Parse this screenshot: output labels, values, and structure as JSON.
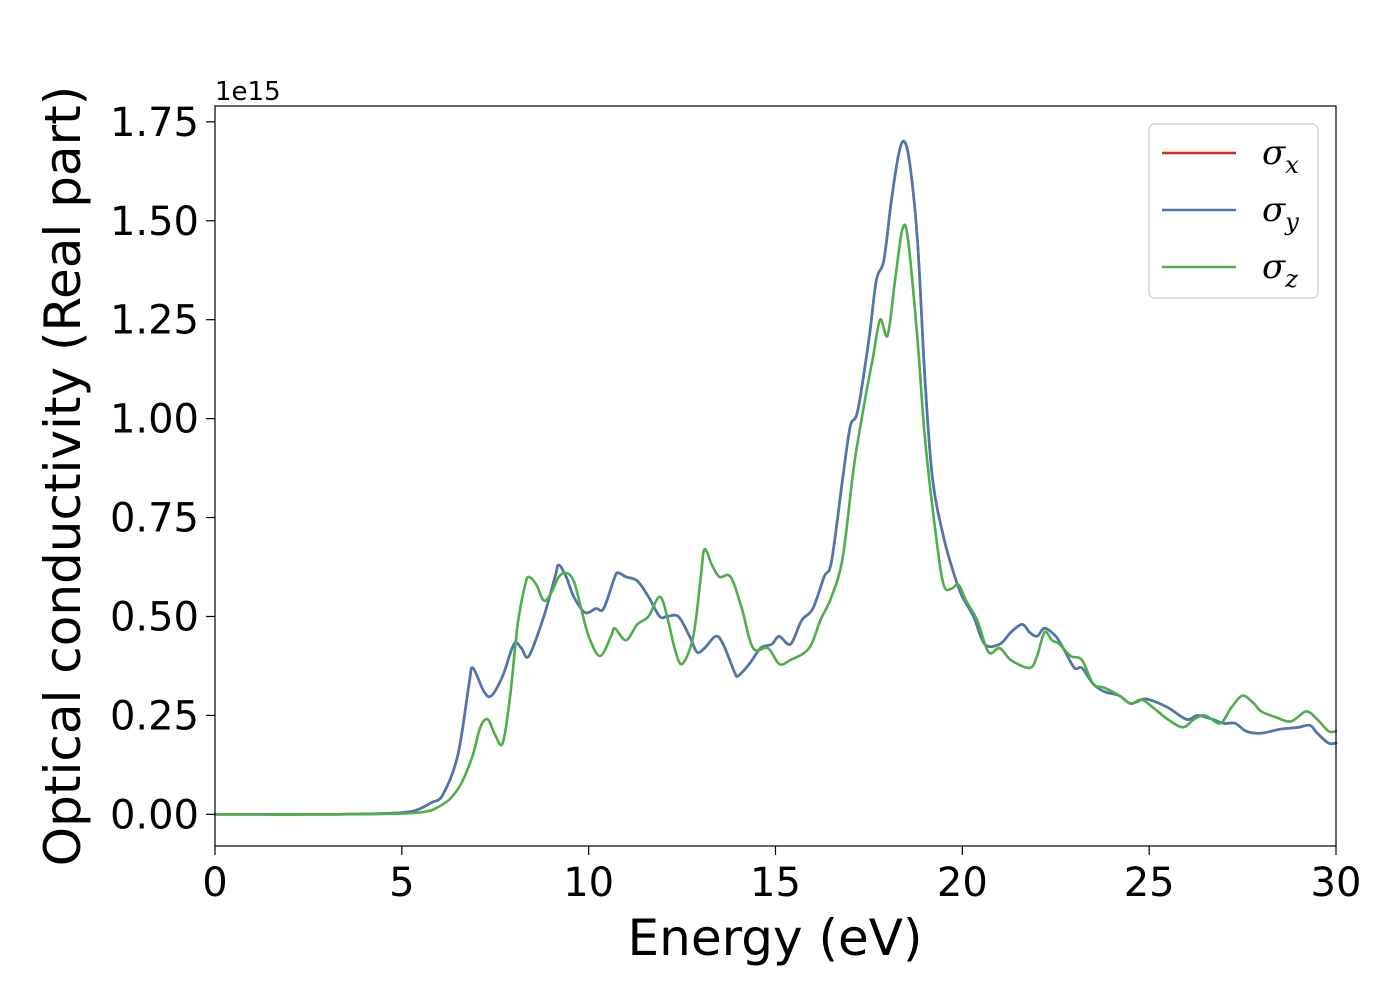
{
  "chart_data": {
    "type": "line",
    "xlabel": "Energy (eV)",
    "ylabel": "Optical conductivity (Real part)",
    "y_offset_text": "1e15",
    "xlim": [
      0,
      30
    ],
    "ylim": [
      -0.08,
      1.79
    ],
    "x_ticks": [
      "0",
      "5",
      "10",
      "15",
      "20",
      "25",
      "30"
    ],
    "y_ticks": [
      "0.00",
      "0.25",
      "0.50",
      "0.75",
      "1.00",
      "1.25",
      "1.50",
      "1.75"
    ],
    "legend_position": "top-right",
    "series": [
      {
        "name": "σ_x",
        "symbol": "σ",
        "subscript": "x",
        "color": "#d62728",
        "points": [
          [
            0,
            0
          ],
          [
            3,
            0
          ],
          [
            4.5,
            0.002
          ],
          [
            5.3,
            0.008
          ],
          [
            5.8,
            0.03
          ],
          [
            6.1,
            0.05
          ],
          [
            6.5,
            0.15
          ],
          [
            6.8,
            0.33
          ],
          [
            6.9,
            0.37
          ],
          [
            7.2,
            0.31
          ],
          [
            7.4,
            0.3
          ],
          [
            7.7,
            0.35
          ],
          [
            8.0,
            0.43
          ],
          [
            8.2,
            0.42
          ],
          [
            8.4,
            0.4
          ],
          [
            8.8,
            0.5
          ],
          [
            9.1,
            0.6
          ],
          [
            9.2,
            0.63
          ],
          [
            9.4,
            0.6
          ],
          [
            9.6,
            0.55
          ],
          [
            9.9,
            0.51
          ],
          [
            10.2,
            0.52
          ],
          [
            10.4,
            0.52
          ],
          [
            10.7,
            0.6
          ],
          [
            10.8,
            0.61
          ],
          [
            11.0,
            0.6
          ],
          [
            11.3,
            0.59
          ],
          [
            11.6,
            0.55
          ],
          [
            11.9,
            0.5
          ],
          [
            12.1,
            0.5
          ],
          [
            12.4,
            0.5
          ],
          [
            12.7,
            0.45
          ],
          [
            12.9,
            0.41
          ],
          [
            13.1,
            0.42
          ],
          [
            13.4,
            0.45
          ],
          [
            13.6,
            0.43
          ],
          [
            13.9,
            0.36
          ],
          [
            14.0,
            0.35
          ],
          [
            14.3,
            0.38
          ],
          [
            14.6,
            0.42
          ],
          [
            14.9,
            0.43
          ],
          [
            15.1,
            0.45
          ],
          [
            15.4,
            0.43
          ],
          [
            15.7,
            0.49
          ],
          [
            16.0,
            0.52
          ],
          [
            16.3,
            0.6
          ],
          [
            16.5,
            0.64
          ],
          [
            16.8,
            0.85
          ],
          [
            17.0,
            0.98
          ],
          [
            17.2,
            1.02
          ],
          [
            17.5,
            1.2
          ],
          [
            17.7,
            1.35
          ],
          [
            17.9,
            1.4
          ],
          [
            18.1,
            1.55
          ],
          [
            18.3,
            1.67
          ],
          [
            18.45,
            1.7
          ],
          [
            18.6,
            1.64
          ],
          [
            18.8,
            1.45
          ],
          [
            19.0,
            1.1
          ],
          [
            19.2,
            0.85
          ],
          [
            19.5,
            0.7
          ],
          [
            19.8,
            0.6
          ],
          [
            20.0,
            0.55
          ],
          [
            20.3,
            0.5
          ],
          [
            20.6,
            0.43
          ],
          [
            21.0,
            0.43
          ],
          [
            21.3,
            0.46
          ],
          [
            21.6,
            0.48
          ],
          [
            21.8,
            0.46
          ],
          [
            22.0,
            0.45
          ],
          [
            22.2,
            0.47
          ],
          [
            22.5,
            0.45
          ],
          [
            22.7,
            0.42
          ],
          [
            23.0,
            0.37
          ],
          [
            23.2,
            0.37
          ],
          [
            23.5,
            0.33
          ],
          [
            23.8,
            0.31
          ],
          [
            24.2,
            0.3
          ],
          [
            24.5,
            0.28
          ],
          [
            24.8,
            0.29
          ],
          [
            25.0,
            0.29
          ],
          [
            25.5,
            0.27
          ],
          [
            26.0,
            0.24
          ],
          [
            26.3,
            0.25
          ],
          [
            26.7,
            0.24
          ],
          [
            27.0,
            0.23
          ],
          [
            27.3,
            0.23
          ],
          [
            27.6,
            0.21
          ],
          [
            28.0,
            0.205
          ],
          [
            28.5,
            0.215
          ],
          [
            29.0,
            0.22
          ],
          [
            29.3,
            0.225
          ],
          [
            29.5,
            0.205
          ],
          [
            29.8,
            0.18
          ],
          [
            30.0,
            0.18
          ]
        ]
      },
      {
        "name": "σ_y",
        "symbol": "σ",
        "subscript": "y",
        "color": "#4a79b1",
        "points": [
          [
            0,
            0
          ],
          [
            3,
            0
          ],
          [
            4.5,
            0.002
          ],
          [
            5.3,
            0.008
          ],
          [
            5.8,
            0.03
          ],
          [
            6.1,
            0.05
          ],
          [
            6.5,
            0.15
          ],
          [
            6.8,
            0.33
          ],
          [
            6.9,
            0.37
          ],
          [
            7.2,
            0.31
          ],
          [
            7.4,
            0.3
          ],
          [
            7.7,
            0.35
          ],
          [
            8.0,
            0.43
          ],
          [
            8.2,
            0.42
          ],
          [
            8.4,
            0.4
          ],
          [
            8.8,
            0.5
          ],
          [
            9.1,
            0.6
          ],
          [
            9.2,
            0.63
          ],
          [
            9.4,
            0.6
          ],
          [
            9.6,
            0.55
          ],
          [
            9.9,
            0.51
          ],
          [
            10.2,
            0.52
          ],
          [
            10.4,
            0.52
          ],
          [
            10.7,
            0.6
          ],
          [
            10.8,
            0.61
          ],
          [
            11.0,
            0.6
          ],
          [
            11.3,
            0.59
          ],
          [
            11.6,
            0.55
          ],
          [
            11.9,
            0.5
          ],
          [
            12.1,
            0.5
          ],
          [
            12.4,
            0.5
          ],
          [
            12.7,
            0.45
          ],
          [
            12.9,
            0.41
          ],
          [
            13.1,
            0.42
          ],
          [
            13.4,
            0.45
          ],
          [
            13.6,
            0.43
          ],
          [
            13.9,
            0.36
          ],
          [
            14.0,
            0.35
          ],
          [
            14.3,
            0.38
          ],
          [
            14.6,
            0.42
          ],
          [
            14.9,
            0.43
          ],
          [
            15.1,
            0.45
          ],
          [
            15.4,
            0.43
          ],
          [
            15.7,
            0.49
          ],
          [
            16.0,
            0.52
          ],
          [
            16.3,
            0.6
          ],
          [
            16.5,
            0.64
          ],
          [
            16.8,
            0.85
          ],
          [
            17.0,
            0.98
          ],
          [
            17.2,
            1.02
          ],
          [
            17.5,
            1.2
          ],
          [
            17.7,
            1.35
          ],
          [
            17.9,
            1.4
          ],
          [
            18.1,
            1.55
          ],
          [
            18.3,
            1.67
          ],
          [
            18.45,
            1.7
          ],
          [
            18.6,
            1.64
          ],
          [
            18.8,
            1.45
          ],
          [
            19.0,
            1.1
          ],
          [
            19.2,
            0.85
          ],
          [
            19.5,
            0.7
          ],
          [
            19.8,
            0.6
          ],
          [
            20.0,
            0.55
          ],
          [
            20.3,
            0.5
          ],
          [
            20.6,
            0.43
          ],
          [
            21.0,
            0.43
          ],
          [
            21.3,
            0.46
          ],
          [
            21.6,
            0.48
          ],
          [
            21.8,
            0.46
          ],
          [
            22.0,
            0.45
          ],
          [
            22.2,
            0.47
          ],
          [
            22.5,
            0.45
          ],
          [
            22.7,
            0.42
          ],
          [
            23.0,
            0.37
          ],
          [
            23.2,
            0.37
          ],
          [
            23.5,
            0.33
          ],
          [
            23.8,
            0.31
          ],
          [
            24.2,
            0.3
          ],
          [
            24.5,
            0.28
          ],
          [
            24.8,
            0.29
          ],
          [
            25.0,
            0.29
          ],
          [
            25.5,
            0.27
          ],
          [
            26.0,
            0.24
          ],
          [
            26.3,
            0.25
          ],
          [
            26.7,
            0.24
          ],
          [
            27.0,
            0.23
          ],
          [
            27.3,
            0.23
          ],
          [
            27.6,
            0.21
          ],
          [
            28.0,
            0.205
          ],
          [
            28.5,
            0.215
          ],
          [
            29.0,
            0.22
          ],
          [
            29.3,
            0.225
          ],
          [
            29.5,
            0.205
          ],
          [
            29.8,
            0.18
          ],
          [
            30.0,
            0.18
          ]
        ]
      },
      {
        "name": "σ_z",
        "symbol": "σ",
        "subscript": "z",
        "color": "#4daf4a",
        "points": [
          [
            0,
            0
          ],
          [
            3,
            0
          ],
          [
            5,
            0.002
          ],
          [
            5.7,
            0.008
          ],
          [
            6.0,
            0.02
          ],
          [
            6.3,
            0.04
          ],
          [
            6.6,
            0.08
          ],
          [
            6.9,
            0.15
          ],
          [
            7.1,
            0.22
          ],
          [
            7.3,
            0.24
          ],
          [
            7.5,
            0.2
          ],
          [
            7.7,
            0.18
          ],
          [
            7.9,
            0.3
          ],
          [
            8.1,
            0.48
          ],
          [
            8.3,
            0.58
          ],
          [
            8.4,
            0.6
          ],
          [
            8.6,
            0.58
          ],
          [
            8.8,
            0.54
          ],
          [
            9.0,
            0.56
          ],
          [
            9.2,
            0.6
          ],
          [
            9.4,
            0.61
          ],
          [
            9.6,
            0.59
          ],
          [
            9.8,
            0.52
          ],
          [
            10.0,
            0.45
          ],
          [
            10.3,
            0.4
          ],
          [
            10.6,
            0.45
          ],
          [
            10.7,
            0.47
          ],
          [
            11.0,
            0.44
          ],
          [
            11.3,
            0.48
          ],
          [
            11.6,
            0.5
          ],
          [
            11.9,
            0.55
          ],
          [
            12.1,
            0.5
          ],
          [
            12.3,
            0.42
          ],
          [
            12.5,
            0.38
          ],
          [
            12.8,
            0.45
          ],
          [
            13.0,
            0.6
          ],
          [
            13.1,
            0.67
          ],
          [
            13.3,
            0.63
          ],
          [
            13.5,
            0.6
          ],
          [
            13.8,
            0.6
          ],
          [
            14.1,
            0.52
          ],
          [
            14.4,
            0.42
          ],
          [
            14.8,
            0.42
          ],
          [
            15.1,
            0.38
          ],
          [
            15.4,
            0.39
          ],
          [
            15.9,
            0.42
          ],
          [
            16.2,
            0.49
          ],
          [
            16.5,
            0.55
          ],
          [
            16.8,
            0.65
          ],
          [
            17.1,
            0.88
          ],
          [
            17.4,
            1.05
          ],
          [
            17.6,
            1.15
          ],
          [
            17.8,
            1.25
          ],
          [
            18.0,
            1.21
          ],
          [
            18.2,
            1.35
          ],
          [
            18.4,
            1.48
          ],
          [
            18.55,
            1.45
          ],
          [
            18.8,
            1.2
          ],
          [
            19.0,
            0.95
          ],
          [
            19.3,
            0.7
          ],
          [
            19.5,
            0.58
          ],
          [
            19.7,
            0.57
          ],
          [
            19.9,
            0.58
          ],
          [
            20.1,
            0.54
          ],
          [
            20.4,
            0.49
          ],
          [
            20.7,
            0.41
          ],
          [
            21.0,
            0.42
          ],
          [
            21.3,
            0.39
          ],
          [
            21.8,
            0.37
          ],
          [
            22.0,
            0.4
          ],
          [
            22.2,
            0.46
          ],
          [
            22.4,
            0.44
          ],
          [
            22.6,
            0.43
          ],
          [
            22.9,
            0.4
          ],
          [
            23.2,
            0.39
          ],
          [
            23.5,
            0.33
          ],
          [
            23.8,
            0.32
          ],
          [
            24.2,
            0.3
          ],
          [
            24.5,
            0.28
          ],
          [
            24.8,
            0.29
          ],
          [
            25.1,
            0.27
          ],
          [
            25.5,
            0.24
          ],
          [
            25.9,
            0.22
          ],
          [
            26.2,
            0.24
          ],
          [
            26.5,
            0.25
          ],
          [
            26.9,
            0.23
          ],
          [
            27.2,
            0.27
          ],
          [
            27.5,
            0.3
          ],
          [
            27.8,
            0.28
          ],
          [
            28.0,
            0.26
          ],
          [
            28.4,
            0.245
          ],
          [
            28.8,
            0.235
          ],
          [
            29.2,
            0.26
          ],
          [
            29.5,
            0.24
          ],
          [
            29.8,
            0.21
          ],
          [
            30.0,
            0.21
          ]
        ]
      }
    ]
  }
}
